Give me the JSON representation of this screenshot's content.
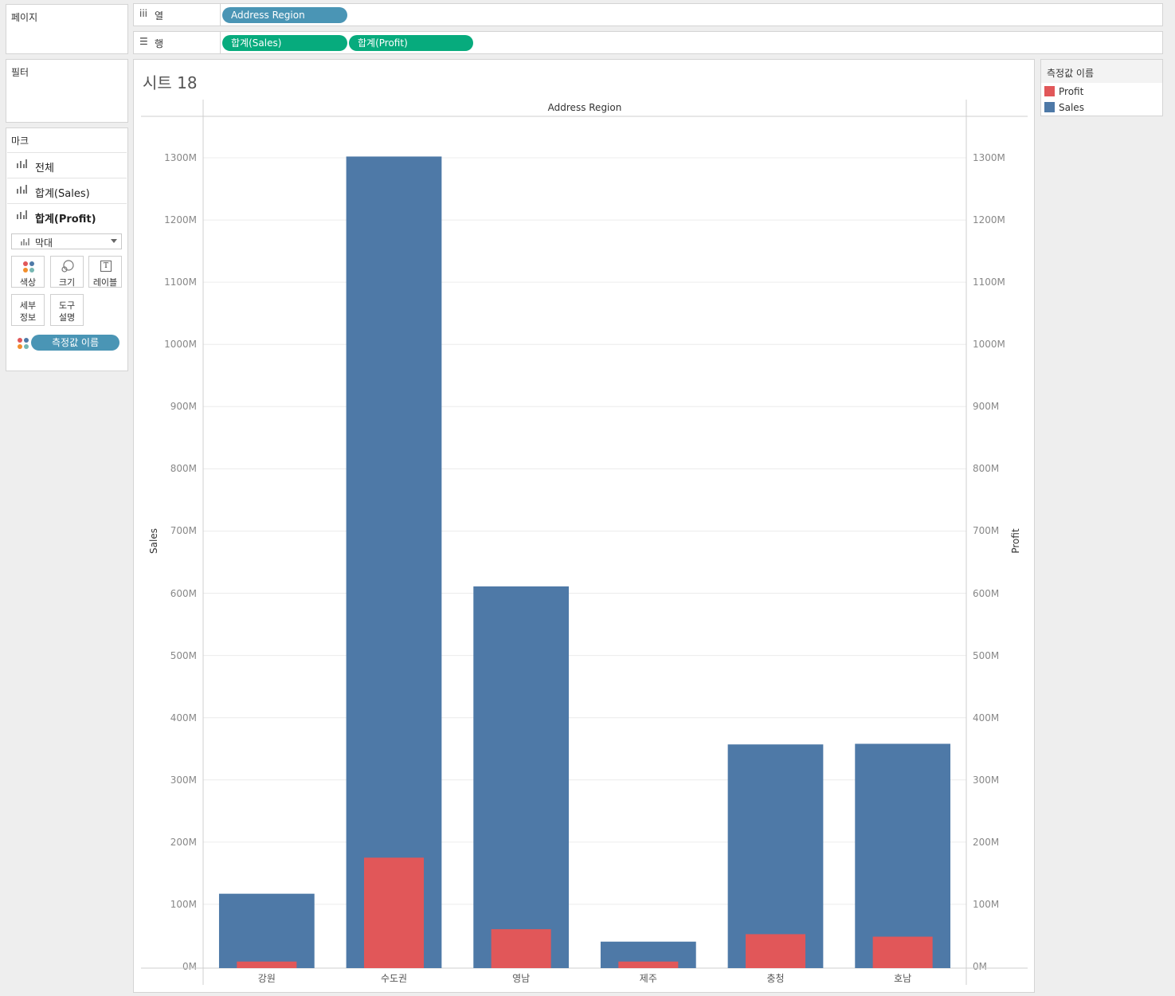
{
  "left_panel": {
    "pages_title": "페이지",
    "filters_title": "필터",
    "marks": {
      "title": "마크",
      "rows": [
        {
          "label": "전체",
          "bold": false
        },
        {
          "label": "합계(Sales)",
          "bold": false
        },
        {
          "label": "합계(Profit)",
          "bold": true
        }
      ],
      "mark_type": "막대",
      "buttons": {
        "color": "색상",
        "size": "크기",
        "label": "레이블",
        "detail_line1": "세부",
        "detail_line2": "정보",
        "tooltip_line1": "도구",
        "tooltip_line2": "설명"
      },
      "field_pill": "측정값 이름"
    }
  },
  "shelves": {
    "columns": {
      "label": "열",
      "pills": [
        "Address Region"
      ]
    },
    "rows": {
      "label": "행",
      "pills": [
        "합계(Sales)",
        "합계(Profit)"
      ]
    }
  },
  "sheet_title": "시트 18",
  "legend": {
    "title": "측정값 이름",
    "items": [
      {
        "name": "Profit",
        "color": "#e15759"
      },
      {
        "name": "Sales",
        "color": "#4e79a7"
      }
    ]
  },
  "chart_data": {
    "type": "bar",
    "header": "Address Region",
    "categories": [
      "강원",
      "수도권",
      "영남",
      "제주",
      "충청",
      "호남"
    ],
    "series": [
      {
        "name": "Sales",
        "color": "#4e79a7",
        "axis": "left",
        "values": [
          117,
          1302,
          611,
          40,
          357,
          358
        ]
      },
      {
        "name": "Profit",
        "color": "#e15759",
        "axis": "right",
        "values": [
          8,
          175,
          60,
          8,
          52,
          48
        ]
      }
    ],
    "ylabel": "Sales",
    "y2label": "Profit",
    "ylim": [
      0,
      1300
    ],
    "yticks": [
      "0M",
      "100M",
      "200M",
      "300M",
      "400M",
      "500M",
      "600M",
      "700M",
      "800M",
      "900M",
      "1000M",
      "1100M",
      "1200M",
      "1300M"
    ],
    "grid": true
  }
}
